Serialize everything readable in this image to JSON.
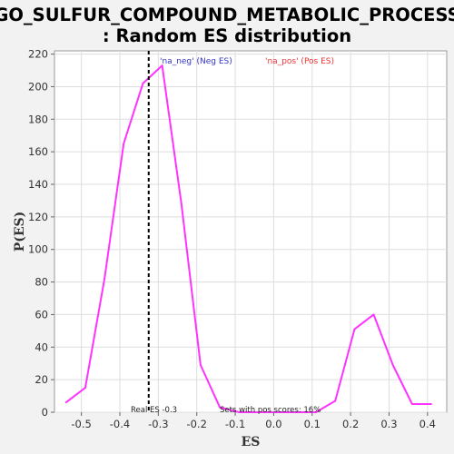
{
  "chart_data": {
    "type": "line",
    "title_line1": "GO_SULFUR_COMPOUND_METABOLIC_PROCESS",
    "title_line2": ": Random ES distribution",
    "xlabel": "ES",
    "ylabel": "P(ES)",
    "xlim": [
      -0.57,
      0.45
    ],
    "ylim": [
      0,
      222
    ],
    "x_ticks": [
      -0.5,
      -0.4,
      -0.3,
      -0.2,
      -0.1,
      0.0,
      0.1,
      0.2,
      0.3,
      0.4
    ],
    "x_tick_labels": [
      "-0.5",
      "-0.4",
      "-0.3",
      "-0.2",
      "-0.1",
      "0.0",
      "0.1",
      "0.2",
      "0.3",
      "0.4"
    ],
    "y_ticks": [
      0,
      20,
      40,
      60,
      80,
      100,
      120,
      140,
      160,
      180,
      200,
      220
    ],
    "y_tick_labels": [
      "0",
      "20",
      "40",
      "60",
      "80",
      "100",
      "120",
      "140",
      "160",
      "180",
      "200",
      "220"
    ],
    "grid": true,
    "series": [
      {
        "color": "#ff33ff",
        "x": [
          -0.54,
          -0.49,
          -0.44,
          -0.39,
          -0.34,
          -0.29,
          -0.24,
          -0.19,
          -0.14,
          -0.09,
          -0.04,
          0.01,
          0.06,
          0.11,
          0.16,
          0.21,
          0.26,
          0.31,
          0.36,
          0.41
        ],
        "y": [
          6,
          15,
          82,
          165,
          202,
          213,
          128,
          29,
          3,
          0,
          0,
          0,
          0,
          0,
          7,
          51,
          60,
          29,
          5,
          5
        ]
      }
    ],
    "real_es": -0.3,
    "real_es_line_x": -0.325,
    "legend": [
      {
        "label": "'na_neg' (Neg ES)",
        "color": "#3333cc"
      },
      {
        "label": "'na_pos' (Pos ES)",
        "color": "#ee3333"
      }
    ],
    "annotations": {
      "real_es": "Real ES -0.3",
      "pos_scores": "Sets with pos scores: 16%"
    }
  }
}
